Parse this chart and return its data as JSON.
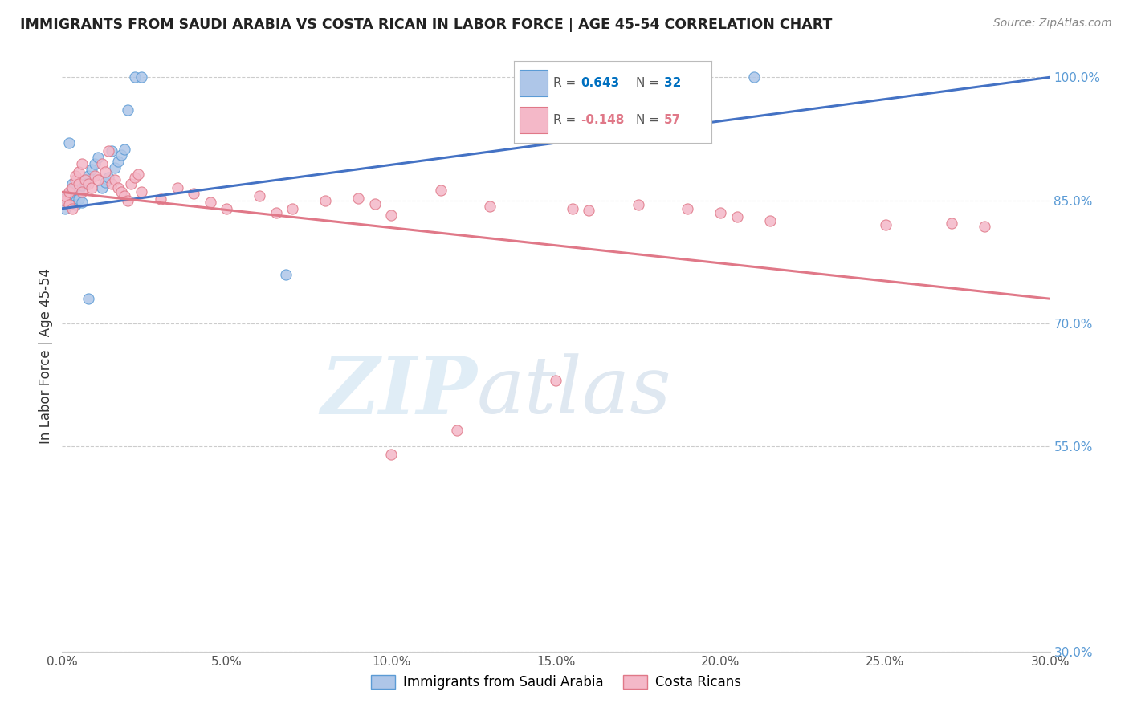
{
  "title": "IMMIGRANTS FROM SAUDI ARABIA VS COSTA RICAN IN LABOR FORCE | AGE 45-54 CORRELATION CHART",
  "source": "Source: ZipAtlas.com",
  "ylabel": "In Labor Force | Age 45-54",
  "xmin": 0.0,
  "xmax": 0.3,
  "ymin": 0.3,
  "ymax": 1.02,
  "xtick_labels": [
    "0.0%",
    "5.0%",
    "10.0%",
    "15.0%",
    "20.0%",
    "25.0%",
    "30.0%"
  ],
  "xtick_values": [
    0.0,
    0.05,
    0.1,
    0.15,
    0.2,
    0.25,
    0.3
  ],
  "ytick_labels": [
    "100.0%",
    "85.0%",
    "70.0%",
    "55.0%",
    "30.0%"
  ],
  "ytick_values": [
    1.0,
    0.85,
    0.7,
    0.55,
    0.3
  ],
  "saudi_color": "#aec6e8",
  "saudi_edge": "#5b9bd5",
  "costa_color": "#f4b8c8",
  "costa_edge": "#e07888",
  "trend_saudi_color": "#4472c4",
  "trend_costa_color": "#e07888",
  "watermark_zip": "ZIP",
  "watermark_atlas": "atlas",
  "saudi_x": [
    0.001,
    0.002,
    0.003,
    0.004,
    0.005,
    0.006,
    0.007,
    0.008,
    0.009,
    0.01,
    0.011,
    0.012,
    0.013,
    0.014,
    0.015,
    0.016,
    0.017,
    0.018,
    0.019,
    0.02,
    0.022,
    0.024,
    0.001,
    0.002,
    0.003,
    0.004,
    0.005,
    0.006,
    0.007,
    0.008,
    0.068,
    0.21
  ],
  "saudi_y": [
    0.853,
    0.92,
    0.87,
    0.855,
    0.862,
    0.868,
    0.875,
    0.88,
    0.888,
    0.895,
    0.902,
    0.865,
    0.872,
    0.878,
    0.91,
    0.89,
    0.898,
    0.905,
    0.912,
    0.96,
    1.0,
    1.0,
    0.84,
    0.858,
    0.863,
    0.845,
    0.852,
    0.848,
    0.87,
    0.73,
    0.76,
    1.0
  ],
  "costa_x": [
    0.001,
    0.001,
    0.002,
    0.002,
    0.003,
    0.003,
    0.004,
    0.004,
    0.005,
    0.005,
    0.006,
    0.006,
    0.007,
    0.008,
    0.009,
    0.01,
    0.011,
    0.012,
    0.013,
    0.014,
    0.015,
    0.016,
    0.017,
    0.018,
    0.019,
    0.02,
    0.021,
    0.022,
    0.023,
    0.024,
    0.03,
    0.035,
    0.04,
    0.045,
    0.05,
    0.06,
    0.065,
    0.07,
    0.08,
    0.09,
    0.095,
    0.1,
    0.115,
    0.13,
    0.155,
    0.16,
    0.175,
    0.19,
    0.2,
    0.205,
    0.215,
    0.25,
    0.27,
    0.28,
    0.15,
    0.12,
    0.1
  ],
  "costa_y": [
    0.85,
    0.855,
    0.845,
    0.86,
    0.84,
    0.865,
    0.875,
    0.88,
    0.87,
    0.885,
    0.895,
    0.86,
    0.875,
    0.87,
    0.865,
    0.88,
    0.875,
    0.895,
    0.885,
    0.91,
    0.87,
    0.875,
    0.865,
    0.86,
    0.855,
    0.85,
    0.87,
    0.878,
    0.882,
    0.86,
    0.852,
    0.865,
    0.858,
    0.848,
    0.84,
    0.855,
    0.835,
    0.84,
    0.85,
    0.853,
    0.846,
    0.832,
    0.862,
    0.843,
    0.84,
    0.838,
    0.845,
    0.84,
    0.835,
    0.83,
    0.825,
    0.82,
    0.822,
    0.818,
    0.63,
    0.57,
    0.54
  ],
  "trend_saudi_x0": 0.0,
  "trend_saudi_y0": 0.84,
  "trend_saudi_x1": 0.3,
  "trend_saudi_y1": 1.0,
  "trend_costa_x0": 0.0,
  "trend_costa_y0": 0.86,
  "trend_costa_x1": 0.3,
  "trend_costa_y1": 0.73
}
